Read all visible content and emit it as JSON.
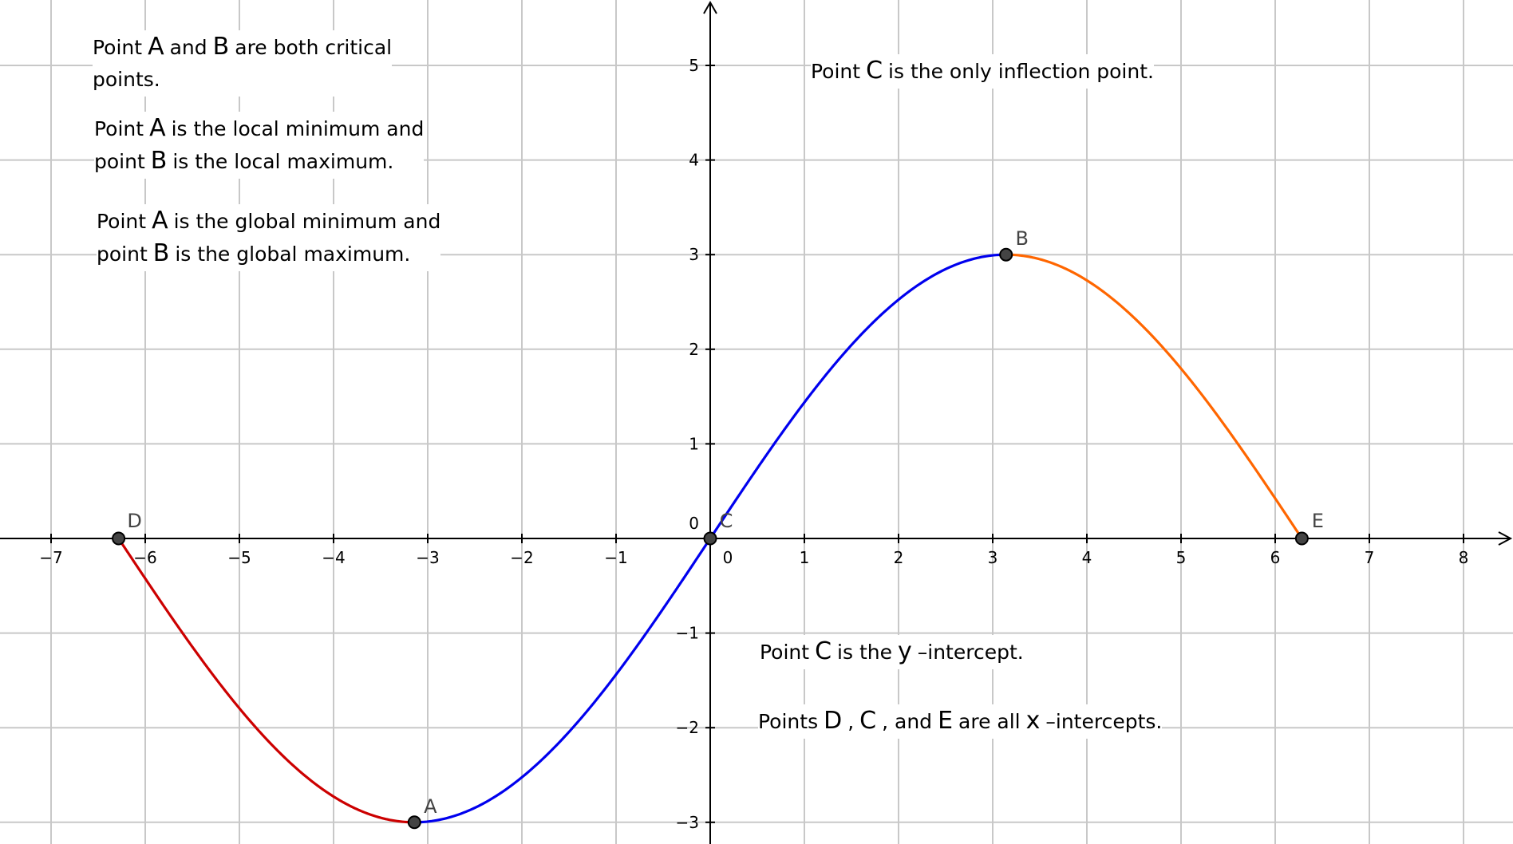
{
  "chart_data": {
    "type": "line",
    "xlim": [
      -7.6,
      8.5
    ],
    "ylim": [
      -3.2,
      5.7
    ],
    "x_ticks": [
      -7,
      -6,
      -5,
      -4,
      -3,
      -2,
      -1,
      0,
      1,
      2,
      3,
      4,
      5,
      6,
      7,
      8
    ],
    "y_ticks": [
      -3,
      -2,
      -1,
      0,
      1,
      2,
      3,
      4,
      5
    ],
    "x_tick_labels": [
      "−7",
      "−6",
      "−5",
      "−4",
      "−3",
      "−2",
      "−1",
      "0",
      "1",
      "2",
      "3",
      "4",
      "5",
      "6",
      "7",
      "8"
    ],
    "y_tick_labels": [
      "−3",
      "−2",
      "−1",
      "0",
      "1",
      "2",
      "3",
      "4",
      "5"
    ],
    "grid": true,
    "function": "3·sin(x/2)",
    "series": [
      {
        "x_range": [
          -6.283,
          -3.1416
        ],
        "color": "#cc0000"
      },
      {
        "x_range": [
          -3.1416,
          3.1416
        ],
        "color": "#0000ee"
      },
      {
        "x_range": [
          3.1416,
          6.283
        ],
        "color": "#ff6600"
      }
    ],
    "points": [
      {
        "label": "A",
        "x": -3.1416,
        "y": -3
      },
      {
        "label": "B",
        "x": 3.1416,
        "y": 3
      },
      {
        "label": "C",
        "x": 0,
        "y": 0
      },
      {
        "label": "D",
        "x": -6.283,
        "y": 0
      },
      {
        "label": "E",
        "x": 6.283,
        "y": 0
      }
    ]
  },
  "notes": {
    "n1": {
      "t1": "Point",
      "s1": "A",
      "t2": "and",
      "s2": "B",
      "t3": "are both critical",
      "t4": "points."
    },
    "n2": {
      "t1": "Point",
      "s1": "A",
      "t2": "is the local minimum and",
      "t3": "point",
      "s2": "B",
      "t4": "is the local maximum."
    },
    "n3": {
      "t1": "Point",
      "s1": "A",
      "t2": "is the global minimum and",
      "t3": "point",
      "s2": "B",
      "t4": "is the global maximum."
    },
    "n4": {
      "t1": "Point",
      "s1": "C",
      "t2": "is the only inflection point."
    },
    "n5": {
      "t1": "Point",
      "s1": "C",
      "t2": "is the",
      "s2": "y",
      "t3": "–intercept."
    },
    "n6": {
      "t1": "Points",
      "s1": "D",
      "c1": ",",
      "s2": "C",
      "t2": ", and",
      "s3": "E",
      "t3": "are all",
      "s4": "x",
      "t4": "–intercepts."
    }
  }
}
